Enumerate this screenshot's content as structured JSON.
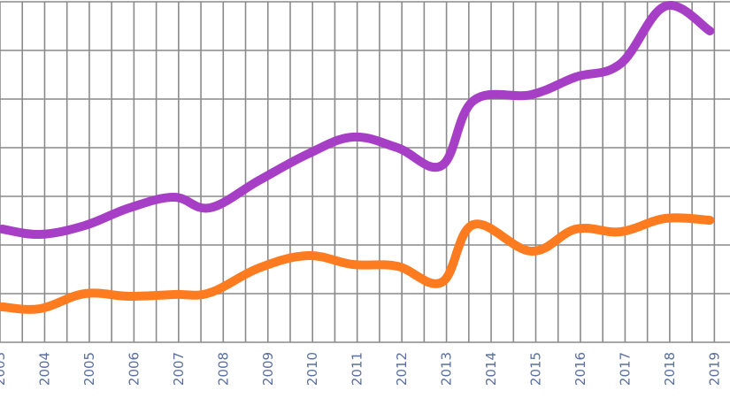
{
  "chart_data": {
    "type": "line",
    "title": "",
    "xlabel": "",
    "ylabel": "",
    "x_tick_labels": [
      "2003",
      "2004",
      "2005",
      "2006",
      "2007",
      "2008",
      "2009",
      "2010",
      "2011",
      "2012",
      "2013",
      "2014",
      "2015",
      "2016",
      "2017",
      "2018",
      "2019"
    ],
    "x": [
      2003.05,
      2003.9,
      2004.9,
      2005.9,
      2006.9,
      2007.7,
      2008.8,
      2009.9,
      2010.9,
      2011.9,
      2012.9,
      2013.6,
      2014.9,
      2015.9,
      2016.9,
      2017.9,
      2018.9
    ],
    "xlim": [
      2003,
      2019.35
    ],
    "ylim": [
      0,
      385
    ],
    "y_axis_visible": false,
    "grid": true,
    "y_grid_values": [
      55,
      110,
      165,
      220,
      275,
      330,
      385
    ],
    "series": [
      {
        "color": "#a63fc5",
        "values": [
          128,
          122,
          132,
          152,
          164,
          152,
          183,
          213,
          232,
          220,
          200,
          273,
          280,
          300,
          315,
          380,
          352
        ]
      },
      {
        "color": "#ff7b1f",
        "values": [
          40,
          38,
          55,
          52,
          54,
          56,
          84,
          98,
          88,
          86,
          68,
          133,
          103,
          128,
          125,
          140,
          138
        ]
      }
    ]
  }
}
